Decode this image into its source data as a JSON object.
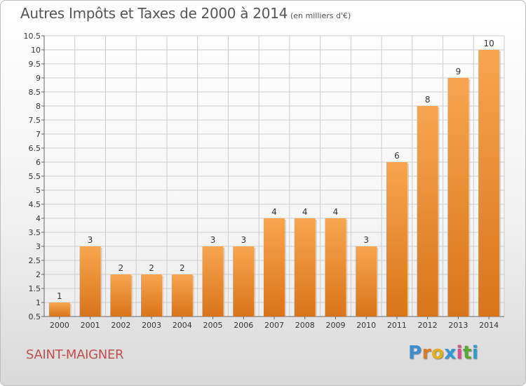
{
  "header": {
    "title": "Autres Impôts et Taxes de 2000 à 2014",
    "subtitle": "(en milliers d'€)"
  },
  "footer": {
    "commune": "SAINT-MAIGNER",
    "logo_letters": [
      "P",
      "r",
      "o",
      "x",
      "i",
      "t",
      "i"
    ],
    "logo_colors": [
      "#3b8ed0",
      "#e07a20",
      "#e0b020",
      "#2e9ad8",
      "#d64f8e",
      "#5aa832",
      "#2e9ad8"
    ]
  },
  "colors": {
    "bar_light": "#f7a64f",
    "bar_dark": "#d9741a",
    "grid": "#cccccc",
    "axis_text": "#333333"
  },
  "chart_data": {
    "type": "bar",
    "categories": [
      "2000",
      "2001",
      "2002",
      "2003",
      "2004",
      "2005",
      "2006",
      "2007",
      "2008",
      "2009",
      "2010",
      "2011",
      "2012",
      "2013",
      "2014"
    ],
    "values": [
      1,
      3,
      2,
      2,
      2,
      3,
      3,
      4,
      4,
      4,
      3,
      6,
      8,
      9,
      10
    ],
    "data_labels": [
      "1",
      "3",
      "2",
      "2",
      "2",
      "3",
      "3",
      "4",
      "4",
      "4",
      "3",
      "6",
      "8",
      "9",
      "10"
    ],
    "yticks": [
      "0.5",
      "1",
      "1.5",
      "2",
      "2.5",
      "3",
      "3.5",
      "4",
      "4.5",
      "5",
      "5.5",
      "6",
      "6.5",
      "7",
      "7.5",
      "8",
      "8.5",
      "9",
      "9.5",
      "10",
      "10.5"
    ],
    "ylim": [
      0.5,
      10.5
    ],
    "grid": true
  }
}
